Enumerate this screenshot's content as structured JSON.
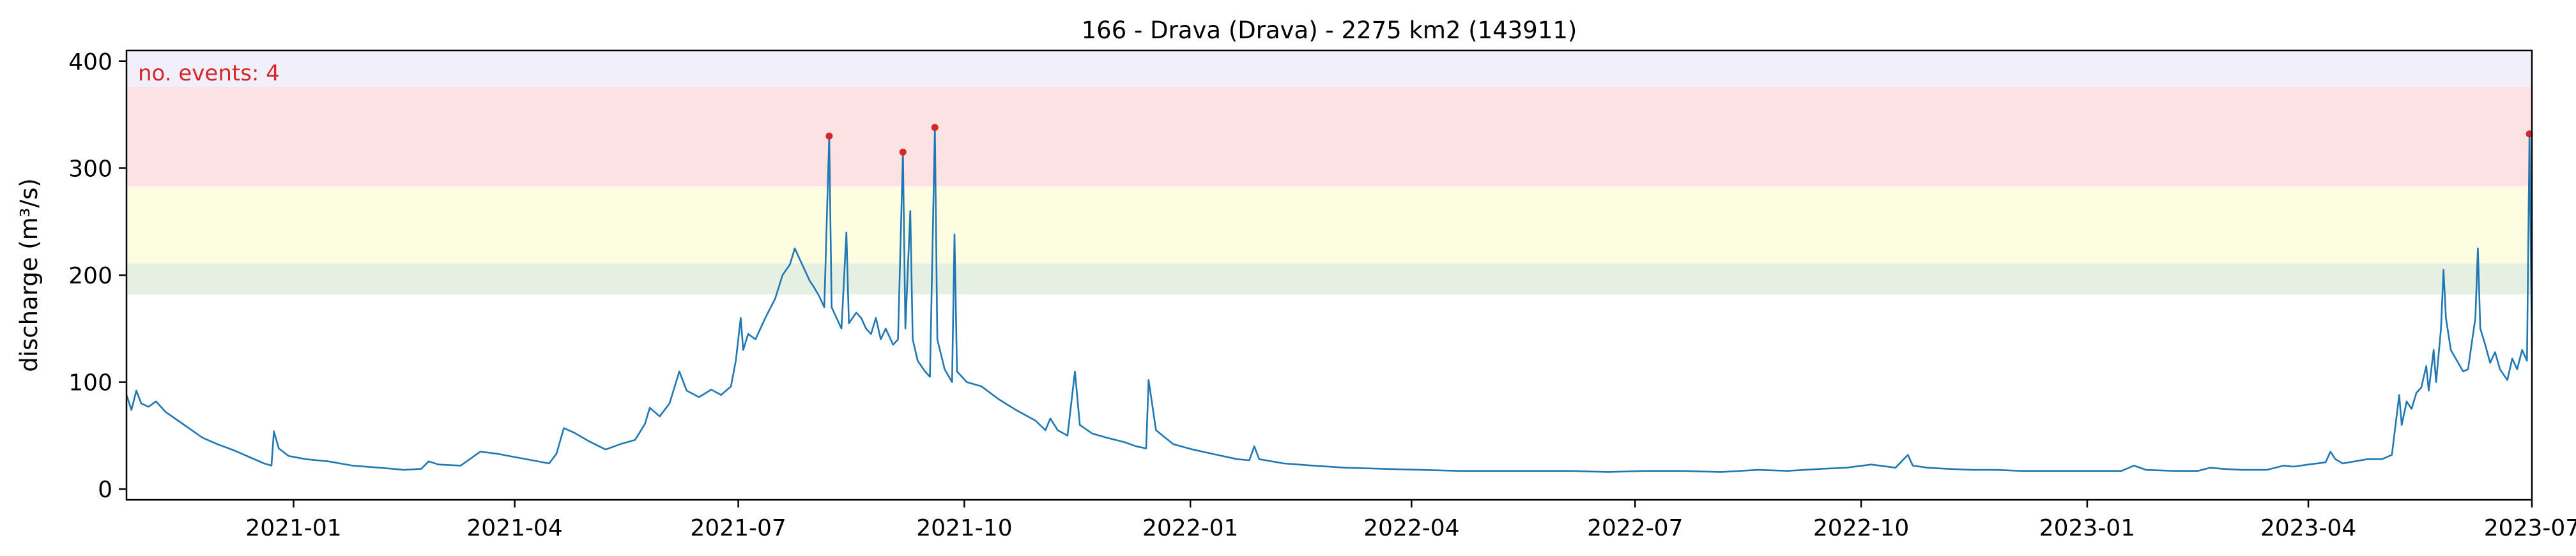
{
  "chart_data": {
    "type": "line",
    "title": "166 - Drava (Drava) - 2275 km2 (143911)",
    "xlabel": "",
    "ylabel": "discharge (m³/s)",
    "xlim": [
      "2020-10-25",
      "2023-07-01"
    ],
    "ylim": [
      -10,
      410
    ],
    "x_ticks": [
      "2021-01",
      "2021-04",
      "2021-07",
      "2021-10",
      "2022-01",
      "2022-04",
      "2022-07",
      "2022-10",
      "2023-01",
      "2023-04",
      "2023-07"
    ],
    "y_ticks": [
      0,
      100,
      200,
      300,
      400
    ],
    "grid": false,
    "annotation": {
      "text": "no. events: 4",
      "color": "#d62728"
    },
    "threshold_bands": [
      {
        "from": 182,
        "to": 211,
        "color": "#e5efe2"
      },
      {
        "from": 211,
        "to": 283,
        "color": "#fdfde2"
      },
      {
        "from": 283,
        "to": 376,
        "color": "#fde2e4"
      },
      {
        "from": 376,
        "to": 410,
        "color": "#f0effa"
      }
    ],
    "series": [
      {
        "color": "#1f77b4",
        "points": [
          [
            "2020-10-25",
            88
          ],
          [
            "2020-10-27",
            74
          ],
          [
            "2020-10-29",
            92
          ],
          [
            "2020-10-31",
            80
          ],
          [
            "2020-11-03",
            77
          ],
          [
            "2020-11-06",
            82
          ],
          [
            "2020-11-10",
            72
          ],
          [
            "2020-11-15",
            64
          ],
          [
            "2020-11-20",
            56
          ],
          [
            "2020-11-25",
            48
          ],
          [
            "2020-12-01",
            42
          ],
          [
            "2020-12-08",
            36
          ],
          [
            "2020-12-14",
            30
          ],
          [
            "2020-12-20",
            24
          ],
          [
            "2020-12-23",
            22
          ],
          [
            "2020-12-24",
            54
          ],
          [
            "2020-12-26",
            38
          ],
          [
            "2020-12-30",
            31
          ],
          [
            "2021-01-06",
            28
          ],
          [
            "2021-01-15",
            26
          ],
          [
            "2021-01-25",
            22
          ],
          [
            "2021-02-05",
            20
          ],
          [
            "2021-02-15",
            18
          ],
          [
            "2021-02-22",
            19
          ],
          [
            "2021-02-25",
            26
          ],
          [
            "2021-03-01",
            23
          ],
          [
            "2021-03-10",
            22
          ],
          [
            "2021-03-18",
            35
          ],
          [
            "2021-03-25",
            33
          ],
          [
            "2021-04-01",
            30
          ],
          [
            "2021-04-08",
            27
          ],
          [
            "2021-04-15",
            24
          ],
          [
            "2021-04-18",
            33
          ],
          [
            "2021-04-21",
            57
          ],
          [
            "2021-04-25",
            53
          ],
          [
            "2021-05-01",
            45
          ],
          [
            "2021-05-08",
            37
          ],
          [
            "2021-05-14",
            42
          ],
          [
            "2021-05-20",
            46
          ],
          [
            "2021-05-24",
            61
          ],
          [
            "2021-05-26",
            76
          ],
          [
            "2021-05-30",
            68
          ],
          [
            "2021-06-03",
            80
          ],
          [
            "2021-06-07",
            110
          ],
          [
            "2021-06-10",
            92
          ],
          [
            "2021-06-15",
            86
          ],
          [
            "2021-06-20",
            93
          ],
          [
            "2021-06-24",
            88
          ],
          [
            "2021-06-28",
            96
          ],
          [
            "2021-06-30",
            120
          ],
          [
            "2021-07-02",
            160
          ],
          [
            "2021-07-03",
            130
          ],
          [
            "2021-07-05",
            145
          ],
          [
            "2021-07-08",
            140
          ],
          [
            "2021-07-12",
            160
          ],
          [
            "2021-07-16",
            178
          ],
          [
            "2021-07-19",
            200
          ],
          [
            "2021-07-22",
            210
          ],
          [
            "2021-07-24",
            225
          ],
          [
            "2021-07-26",
            215
          ],
          [
            "2021-07-28",
            205
          ],
          [
            "2021-07-30",
            195
          ],
          [
            "2021-08-01",
            188
          ],
          [
            "2021-08-03",
            180
          ],
          [
            "2021-08-05",
            170
          ],
          [
            "2021-08-07",
            330
          ],
          [
            "2021-08-08",
            170
          ],
          [
            "2021-08-10",
            160
          ],
          [
            "2021-08-12",
            150
          ],
          [
            "2021-08-14",
            240
          ],
          [
            "2021-08-15",
            155
          ],
          [
            "2021-08-18",
            165
          ],
          [
            "2021-08-20",
            160
          ],
          [
            "2021-08-22",
            150
          ],
          [
            "2021-08-24",
            145
          ],
          [
            "2021-08-26",
            160
          ],
          [
            "2021-08-28",
            140
          ],
          [
            "2021-08-30",
            150
          ],
          [
            "2021-09-02",
            135
          ],
          [
            "2021-09-04",
            140
          ],
          [
            "2021-09-06",
            315
          ],
          [
            "2021-09-07",
            150
          ],
          [
            "2021-09-09",
            260
          ],
          [
            "2021-09-10",
            140
          ],
          [
            "2021-09-12",
            120
          ],
          [
            "2021-09-15",
            110
          ],
          [
            "2021-09-17",
            105
          ],
          [
            "2021-09-19",
            338
          ],
          [
            "2021-09-20",
            140
          ],
          [
            "2021-09-23",
            112
          ],
          [
            "2021-09-26",
            100
          ],
          [
            "2021-09-27",
            238
          ],
          [
            "2021-09-28",
            110
          ],
          [
            "2021-10-02",
            100
          ],
          [
            "2021-10-08",
            96
          ],
          [
            "2021-10-15",
            84
          ],
          [
            "2021-10-22",
            74
          ],
          [
            "2021-10-30",
            64
          ],
          [
            "2021-11-03",
            55
          ],
          [
            "2021-11-05",
            66
          ],
          [
            "2021-11-08",
            55
          ],
          [
            "2021-11-12",
            50
          ],
          [
            "2021-11-15",
            110
          ],
          [
            "2021-11-17",
            60
          ],
          [
            "2021-11-22",
            52
          ],
          [
            "2021-11-28",
            48
          ],
          [
            "2021-12-05",
            44
          ],
          [
            "2021-12-10",
            40
          ],
          [
            "2021-12-14",
            38
          ],
          [
            "2021-12-15",
            102
          ],
          [
            "2021-12-18",
            55
          ],
          [
            "2021-12-25",
            42
          ],
          [
            "2022-01-02",
            37
          ],
          [
            "2022-01-12",
            32
          ],
          [
            "2022-01-20",
            28
          ],
          [
            "2022-01-25",
            27
          ],
          [
            "2022-01-27",
            40
          ],
          [
            "2022-01-29",
            28
          ],
          [
            "2022-02-08",
            24
          ],
          [
            "2022-02-20",
            22
          ],
          [
            "2022-03-05",
            20
          ],
          [
            "2022-03-20",
            19
          ],
          [
            "2022-04-05",
            18
          ],
          [
            "2022-04-20",
            17
          ],
          [
            "2022-05-05",
            17
          ],
          [
            "2022-05-20",
            17
          ],
          [
            "2022-06-05",
            17
          ],
          [
            "2022-06-20",
            16
          ],
          [
            "2022-07-05",
            17
          ],
          [
            "2022-07-20",
            17
          ],
          [
            "2022-08-05",
            16
          ],
          [
            "2022-08-20",
            18
          ],
          [
            "2022-09-01",
            17
          ],
          [
            "2022-09-15",
            19
          ],
          [
            "2022-09-25",
            20
          ],
          [
            "2022-10-05",
            23
          ],
          [
            "2022-10-15",
            20
          ],
          [
            "2022-10-20",
            32
          ],
          [
            "2022-10-22",
            22
          ],
          [
            "2022-10-28",
            20
          ],
          [
            "2022-11-05",
            19
          ],
          [
            "2022-11-15",
            18
          ],
          [
            "2022-11-25",
            18
          ],
          [
            "2022-12-05",
            17
          ],
          [
            "2022-12-15",
            17
          ],
          [
            "2022-12-25",
            17
          ],
          [
            "2023-01-05",
            17
          ],
          [
            "2023-01-15",
            17
          ],
          [
            "2023-01-20",
            22
          ],
          [
            "2023-01-25",
            18
          ],
          [
            "2023-02-05",
            17
          ],
          [
            "2023-02-15",
            17
          ],
          [
            "2023-02-20",
            20
          ],
          [
            "2023-02-25",
            19
          ],
          [
            "2023-03-05",
            18
          ],
          [
            "2023-03-15",
            18
          ],
          [
            "2023-03-22",
            22
          ],
          [
            "2023-03-26",
            21
          ],
          [
            "2023-04-01",
            23
          ],
          [
            "2023-04-08",
            25
          ],
          [
            "2023-04-10",
            35
          ],
          [
            "2023-04-12",
            28
          ],
          [
            "2023-04-15",
            24
          ],
          [
            "2023-04-20",
            26
          ],
          [
            "2023-04-25",
            28
          ],
          [
            "2023-05-01",
            28
          ],
          [
            "2023-05-05",
            32
          ],
          [
            "2023-05-08",
            88
          ],
          [
            "2023-05-09",
            60
          ],
          [
            "2023-05-11",
            82
          ],
          [
            "2023-05-13",
            75
          ],
          [
            "2023-05-15",
            90
          ],
          [
            "2023-05-17",
            95
          ],
          [
            "2023-05-19",
            115
          ],
          [
            "2023-05-20",
            92
          ],
          [
            "2023-05-22",
            130
          ],
          [
            "2023-05-23",
            100
          ],
          [
            "2023-05-25",
            150
          ],
          [
            "2023-05-26",
            205
          ],
          [
            "2023-05-27",
            160
          ],
          [
            "2023-05-29",
            130
          ],
          [
            "2023-06-01",
            118
          ],
          [
            "2023-06-03",
            110
          ],
          [
            "2023-06-05",
            112
          ],
          [
            "2023-06-08",
            160
          ],
          [
            "2023-06-09",
            225
          ],
          [
            "2023-06-10",
            150
          ],
          [
            "2023-06-12",
            135
          ],
          [
            "2023-06-14",
            118
          ],
          [
            "2023-06-16",
            128
          ],
          [
            "2023-06-18",
            112
          ],
          [
            "2023-06-21",
            102
          ],
          [
            "2023-06-23",
            122
          ],
          [
            "2023-06-25",
            112
          ],
          [
            "2023-06-27",
            130
          ],
          [
            "2023-06-29",
            120
          ],
          [
            "2023-06-30",
            332
          ],
          [
            "2023-07-01",
            130
          ]
        ]
      }
    ],
    "events": [
      {
        "x": "2021-08-07",
        "y": 330
      },
      {
        "x": "2021-09-06",
        "y": 315
      },
      {
        "x": "2021-09-19",
        "y": 338
      },
      {
        "x": "2023-06-30",
        "y": 332
      }
    ]
  }
}
